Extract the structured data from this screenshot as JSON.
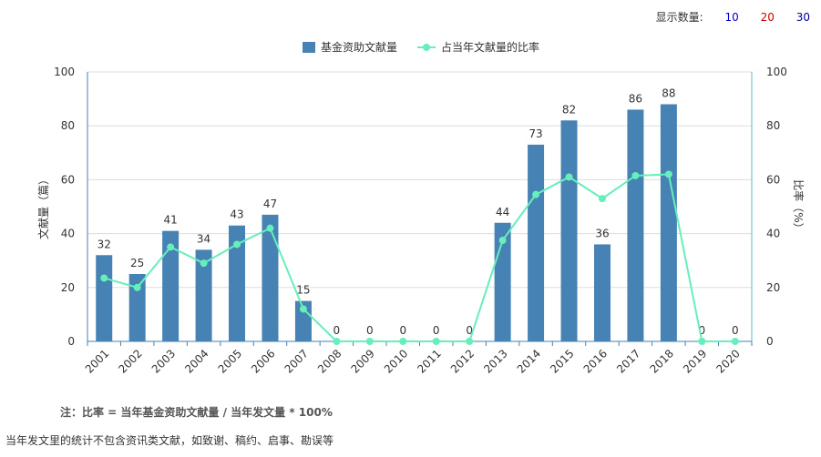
{
  "toolbar": {
    "display_count_label": "显示数量:",
    "options": [
      {
        "label": "10",
        "color": "#0000cc"
      },
      {
        "label": "20",
        "color": "#cc0000"
      },
      {
        "label": "30",
        "color": "#000099"
      }
    ]
  },
  "chart_data": {
    "type": "bar",
    "categories": [
      "2001",
      "2002",
      "2003",
      "2004",
      "2005",
      "2006",
      "2007",
      "2008",
      "2009",
      "2010",
      "2011",
      "2012",
      "2013",
      "2014",
      "2015",
      "2016",
      "2017",
      "2018",
      "2019",
      "2020"
    ],
    "series": [
      {
        "name": "基金资助文献量",
        "type": "bar",
        "axis": "left",
        "color": "#4682b4",
        "values": [
          32,
          25,
          41,
          34,
          43,
          47,
          15,
          0,
          0,
          0,
          0,
          0,
          44,
          73,
          82,
          36,
          86,
          88,
          0,
          0
        ]
      },
      {
        "name": "占当年文献量的比率",
        "type": "line",
        "axis": "right",
        "color": "#66eebb",
        "values": [
          23.5,
          20,
          35,
          29,
          36,
          42,
          12,
          0,
          0,
          0,
          0,
          0,
          37.5,
          54.5,
          61,
          53,
          61.5,
          62,
          0,
          0
        ]
      }
    ],
    "ylabel": "文献量（篇）",
    "y2label": "比率（%）",
    "ylim": [
      0,
      100
    ],
    "y2lim": [
      0,
      100
    ],
    "yticks": [
      0,
      20,
      40,
      60,
      80,
      100
    ],
    "legend_position": "top-center",
    "grid": true
  },
  "note": "注：比率 = 当年基金资助文献量 / 当年发文量 * 100%",
  "footnote": "当年发文里的统计不包含资讯类文献，如致谢、稿约、启事、勘误等"
}
